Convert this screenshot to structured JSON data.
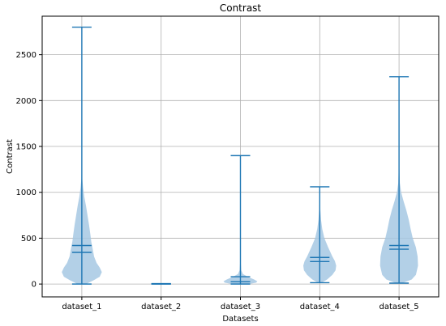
{
  "chart_data": {
    "type": "violin",
    "title": "Contrast",
    "xlabel": "Datasets",
    "ylabel": "Contrast",
    "categories": [
      "dataset_1",
      "dataset_2",
      "dataset_3",
      "dataset_4",
      "dataset_5"
    ],
    "ylim": [
      -140,
      2920
    ],
    "yticks": [
      0,
      500,
      1000,
      1500,
      2000,
      2500
    ],
    "grid": true,
    "colors": {
      "violin_fill": "#a6c8e3",
      "lines": "#1f77b4",
      "grid": "#b0b0b0"
    },
    "series": [
      {
        "category": "dataset_1",
        "min": 0,
        "max": 2800,
        "mean": 420,
        "median": 345,
        "density": [
          [
            0,
            0.2
          ],
          [
            40,
            0.55
          ],
          [
            80,
            0.85
          ],
          [
            130,
            0.95
          ],
          [
            180,
            0.85
          ],
          [
            230,
            0.7
          ],
          [
            300,
            0.58
          ],
          [
            380,
            0.52
          ],
          [
            460,
            0.45
          ],
          [
            550,
            0.4
          ],
          [
            650,
            0.34
          ],
          [
            750,
            0.27
          ],
          [
            850,
            0.2
          ],
          [
            950,
            0.12
          ],
          [
            1050,
            0.06
          ],
          [
            1150,
            0.02
          ],
          [
            1300,
            0.008
          ],
          [
            1600,
            0.004
          ],
          [
            2000,
            0.003
          ],
          [
            2400,
            0.002
          ],
          [
            2800,
            0.001
          ]
        ]
      },
      {
        "category": "dataset_2",
        "min": 0,
        "max": 5,
        "mean": 2,
        "median": 1,
        "density": [
          [
            0,
            0.05
          ],
          [
            2,
            0.08
          ],
          [
            5,
            0.02
          ]
        ]
      },
      {
        "category": "dataset_3",
        "min": 0,
        "max": 1400,
        "mean": 80,
        "median": 25,
        "density": [
          [
            0,
            0.4
          ],
          [
            15,
            0.75
          ],
          [
            30,
            0.8
          ],
          [
            50,
            0.65
          ],
          [
            80,
            0.35
          ],
          [
            110,
            0.12
          ],
          [
            150,
            0.04
          ],
          [
            250,
            0.01
          ],
          [
            500,
            0.006
          ],
          [
            900,
            0.004
          ],
          [
            1400,
            0.002
          ]
        ]
      },
      {
        "category": "dataset_4",
        "min": 15,
        "max": 1060,
        "mean": 290,
        "median": 245,
        "density": [
          [
            15,
            0.1
          ],
          [
            50,
            0.35
          ],
          [
            100,
            0.6
          ],
          [
            150,
            0.75
          ],
          [
            200,
            0.78
          ],
          [
            250,
            0.72
          ],
          [
            300,
            0.6
          ],
          [
            400,
            0.4
          ],
          [
            500,
            0.22
          ],
          [
            600,
            0.12
          ],
          [
            700,
            0.06
          ],
          [
            800,
            0.03
          ],
          [
            900,
            0.015
          ],
          [
            1000,
            0.006
          ],
          [
            1060,
            0.002
          ]
        ]
      },
      {
        "category": "dataset_5",
        "min": 10,
        "max": 2260,
        "mean": 420,
        "median": 380,
        "density": [
          [
            10,
            0.15
          ],
          [
            50,
            0.6
          ],
          [
            100,
            0.8
          ],
          [
            200,
            0.9
          ],
          [
            300,
            0.88
          ],
          [
            400,
            0.8
          ],
          [
            500,
            0.65
          ],
          [
            600,
            0.55
          ],
          [
            700,
            0.46
          ],
          [
            800,
            0.35
          ],
          [
            900,
            0.22
          ],
          [
            1000,
            0.1
          ],
          [
            1100,
            0.04
          ],
          [
            1300,
            0.012
          ],
          [
            1600,
            0.006
          ],
          [
            2000,
            0.003
          ],
          [
            2260,
            0.001
          ]
        ]
      }
    ]
  }
}
